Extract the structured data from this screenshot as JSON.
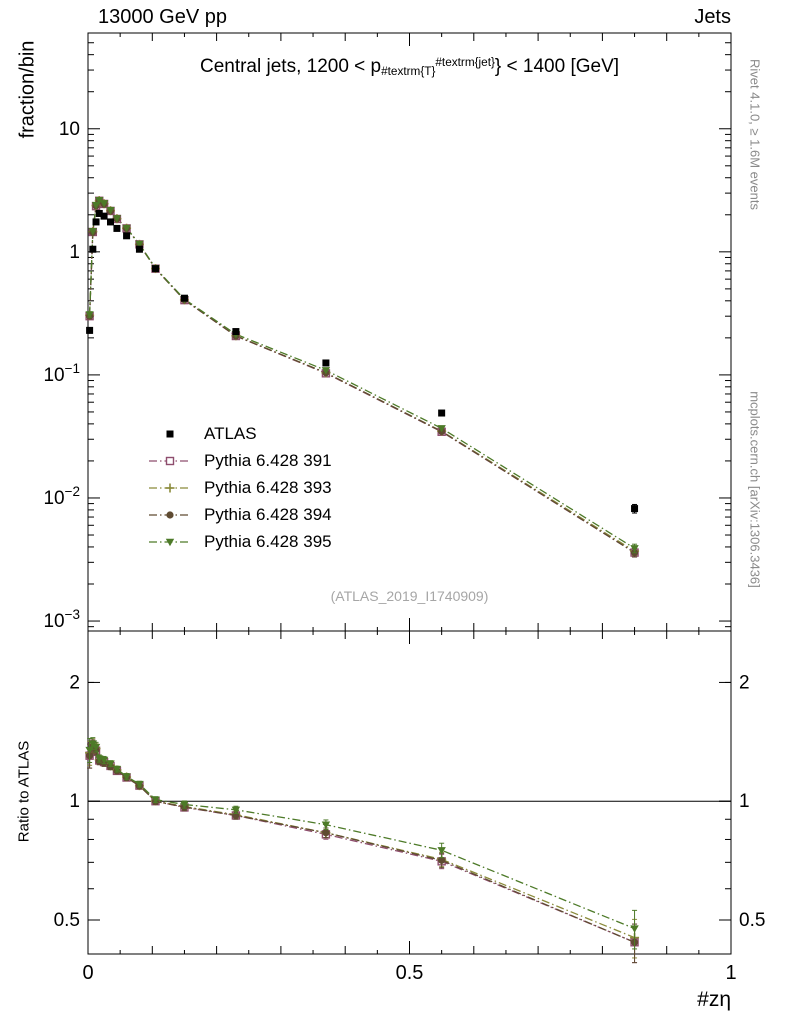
{
  "header": {
    "left": "13000 GeV pp",
    "right": "Jets"
  },
  "panel_title": {
    "prefix": "Central jets, 1200 < p",
    "sub": "#textrm{T}",
    "sup": "#textrm{jet}",
    "suffix": "} < 1400 [GeV]"
  },
  "axes": {
    "y_main_label": "fraction/bin",
    "y_ratio_label": "Ratio to ATLAS",
    "x_label": "#zη"
  },
  "side_notes": {
    "top": "Rivet 4.1.0, ≥ 1.6M events",
    "bottom": "mcplots.cern.ch [arXiv:1306.3436]"
  },
  "watermark": "(ATLAS_2019_I1740909)",
  "chart_data": {
    "type": "line",
    "title": "Central jets, 1200 < pT jet < 1400 [GeV]",
    "xlabel": "#zη",
    "ylabel_main": "fraction/bin",
    "ylabel_ratio": "Ratio to ATLAS",
    "x": [
      0.0025,
      0.0075,
      0.0125,
      0.0175,
      0.025,
      0.035,
      0.045,
      0.06,
      0.08,
      0.105,
      0.15,
      0.23,
      0.37,
      0.55,
      0.85
    ],
    "series": [
      {
        "name": "ATLAS",
        "marker": "square-filled",
        "color": "#000000",
        "line": "none",
        "values": [
          0.23,
          1.05,
          1.75,
          2.05,
          1.95,
          1.75,
          1.55,
          1.35,
          1.05,
          0.73,
          0.42,
          0.225,
          0.125,
          0.049,
          0.0082
        ]
      },
      {
        "name": "Pythia 6.428 391",
        "marker": "square-open",
        "color": "#8e4d6d",
        "line": "dashdot",
        "values": [
          0.3,
          1.45,
          2.35,
          2.6,
          2.45,
          2.15,
          1.85,
          1.55,
          1.15,
          0.73,
          0.405,
          0.207,
          0.103,
          0.0345,
          0.0036
        ]
      },
      {
        "name": "Pythia 6.428 393",
        "marker": "cross-open",
        "color": "#8a8a3a",
        "line": "dashdot",
        "values": [
          0.305,
          1.46,
          2.38,
          2.61,
          2.46,
          2.16,
          1.86,
          1.555,
          1.15,
          0.731,
          0.407,
          0.208,
          0.104,
          0.0349,
          0.0037
        ]
      },
      {
        "name": "Pythia 6.428 394",
        "marker": "circle-filled",
        "color": "#5f4b32",
        "line": "dashdot",
        "values": [
          0.3,
          1.44,
          2.36,
          2.59,
          2.44,
          2.14,
          1.85,
          1.55,
          1.148,
          0.729,
          0.406,
          0.207,
          0.104,
          0.0347,
          0.0036
        ]
      },
      {
        "name": "Pythia 6.428 395",
        "marker": "triangle-down-filled",
        "color": "#4d7a28",
        "line": "dashdot",
        "values": [
          0.31,
          1.47,
          2.4,
          2.63,
          2.48,
          2.18,
          1.87,
          1.56,
          1.16,
          0.737,
          0.412,
          0.214,
          0.109,
          0.0368,
          0.0039
        ]
      }
    ],
    "err_frac": [
      0.05,
      0.025,
      0.02,
      0.015,
      0.015,
      0.012,
      0.012,
      0.012,
      0.012,
      0.012,
      0.015,
      0.015,
      0.02,
      0.03,
      0.08
    ],
    "y_main": {
      "scale": "log",
      "min": 0.00083,
      "max": 60,
      "ticks": [
        10,
        1,
        0.1,
        0.01,
        0.001
      ]
    },
    "y_ratio": {
      "scale": "log",
      "min": 0.41,
      "max": 2.7,
      "ticks": [
        2,
        1,
        0.5
      ]
    },
    "x_axis": {
      "min": 0,
      "max": 1,
      "ticks": [
        0,
        0.5,
        1
      ],
      "minor_step": 0.05
    },
    "ratio_reference": 1,
    "legend_position": "middle-left",
    "grid": false
  }
}
